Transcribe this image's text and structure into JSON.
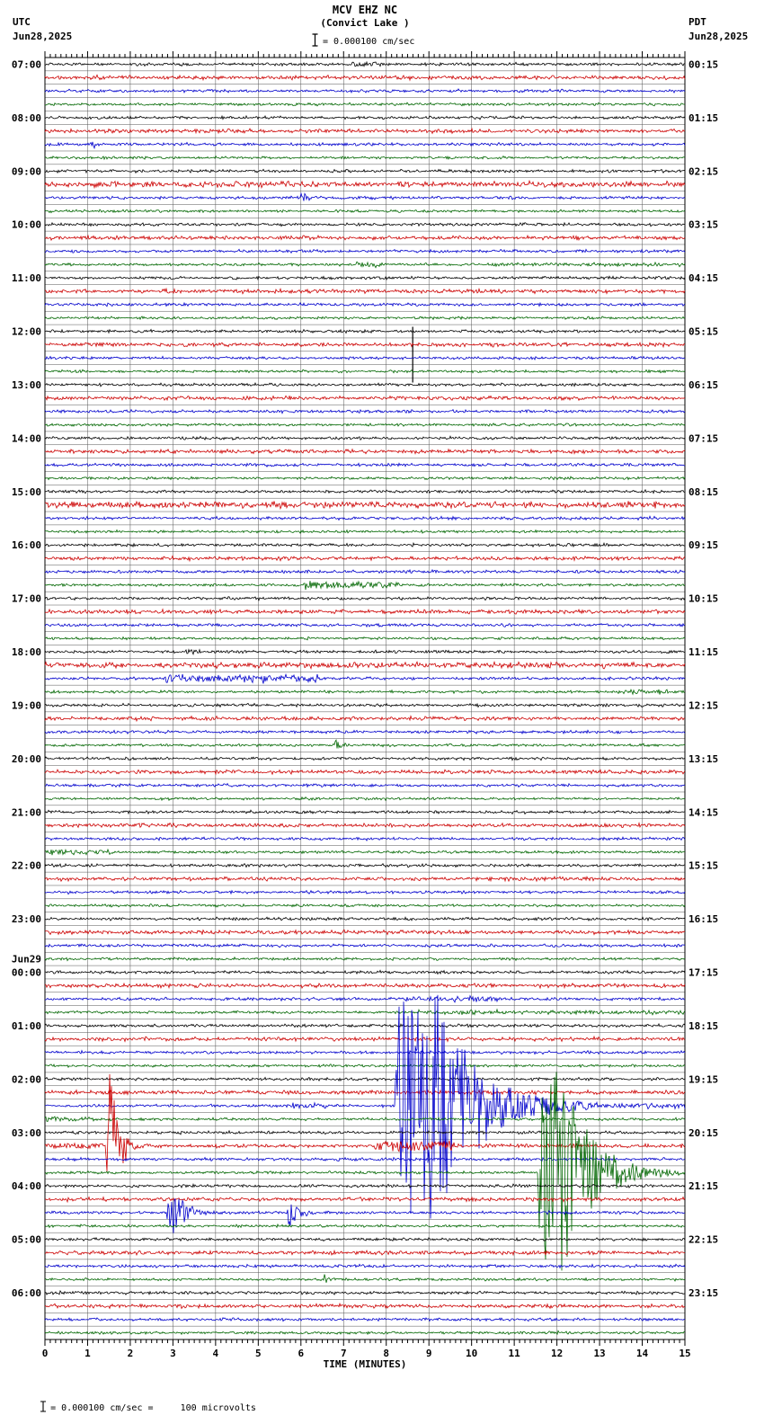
{
  "header": {
    "title_line1": "MCV EHZ NC",
    "title_line2": "(Convict Lake )",
    "left_tz": "UTC",
    "left_date": "Jun28,2025",
    "right_tz": "PDT",
    "right_date": "Jun28,2025",
    "scale_icon": "i-beam-icon",
    "scale_label": "= 0.000100 cm/sec"
  },
  "footer": {
    "xaxis_title": "TIME (MINUTES)",
    "scale_icon": "i-beam-icon",
    "scale_note": "= 0.000100 cm/sec =     100 microvolts"
  },
  "chart_data": {
    "type": "line",
    "subtype": "helicorder-seismogram",
    "station": "MCV EHZ NC",
    "location": "Convict Lake",
    "minutes_per_row": 15,
    "rows_total": 96,
    "x_axis": {
      "label": "TIME (MINUTES)",
      "range": [
        0,
        15
      ],
      "ticks": [
        0,
        1,
        2,
        3,
        4,
        5,
        6,
        7,
        8,
        9,
        10,
        11,
        12,
        13,
        14,
        15
      ]
    },
    "trace_colors_cycle": [
      "#000000",
      "#cc0000",
      "#0000cc",
      "#006600"
    ],
    "utc_hour_labels": [
      "07:00",
      "08:00",
      "09:00",
      "10:00",
      "11:00",
      "12:00",
      "13:00",
      "14:00",
      "15:00",
      "16:00",
      "17:00",
      "18:00",
      "19:00",
      "20:00",
      "21:00",
      "22:00",
      "23:00",
      "00:00",
      "01:00",
      "02:00",
      "03:00",
      "04:00",
      "05:00",
      "06:00"
    ],
    "pdt_hour_labels": [
      "00:15",
      "01:15",
      "02:15",
      "03:15",
      "04:15",
      "05:15",
      "06:15",
      "07:15",
      "08:15",
      "09:15",
      "10:15",
      "11:15",
      "12:15",
      "13:15",
      "14:15",
      "15:15",
      "16:15",
      "17:15",
      "18:15",
      "19:15",
      "20:15",
      "21:15",
      "22:15",
      "23:15"
    ],
    "day_change": {
      "label": "Jun29",
      "before_utc_label": "00:00"
    },
    "noise": {
      "base_by_color": [
        1.0,
        1.3,
        1.0,
        0.9
      ],
      "row_overrides": {
        "9": 1.5,
        "33": 1.7,
        "45": 1.5
      }
    },
    "events": [
      {
        "row": 0,
        "type": "burst",
        "t0": 7.2,
        "t1": 7.9,
        "amp": 3
      },
      {
        "row": 6,
        "type": "spike",
        "t0": 1.05,
        "t1": 1.6,
        "amp": 5
      },
      {
        "row": 10,
        "type": "spike",
        "t0": 6.0,
        "t1": 6.6,
        "amp": 6
      },
      {
        "row": 15,
        "type": "burst",
        "t0": 7.3,
        "t1": 8.0,
        "amp": 2.2
      },
      {
        "row": 15,
        "type": "step",
        "t0": 10.4,
        "t1": 15,
        "amp": 1.3
      },
      {
        "row": 20,
        "type": "vline",
        "t0": 8.62,
        "up": 5,
        "down": 57
      },
      {
        "row": 39,
        "type": "spike",
        "t0": 6.05,
        "t1": 8.4,
        "amp": 6
      },
      {
        "row": 39,
        "type": "burst",
        "t0": 6.3,
        "t1": 8.3,
        "amp": 3
      },
      {
        "row": 44,
        "type": "burst",
        "t0": 3.3,
        "t1": 3.65,
        "amp": 2.5
      },
      {
        "row": 46,
        "type": "burst",
        "t0": 2.8,
        "t1": 6.4,
        "amp": 3.5
      },
      {
        "row": 46,
        "type": "spike",
        "t0": 3.0,
        "t1": 4.2,
        "amp": 6
      },
      {
        "row": 46,
        "type": "spike",
        "t0": 5.1,
        "t1": 6.1,
        "amp": 6
      },
      {
        "row": 47,
        "type": "burst",
        "t0": 13.4,
        "t1": 14.6,
        "amp": 2
      },
      {
        "row": 51,
        "type": "spike",
        "t0": 6.8,
        "t1": 7.25,
        "amp": 7
      },
      {
        "row": 57,
        "type": "burst",
        "t0": 2.85,
        "t1": 3.25,
        "amp": 3
      },
      {
        "row": 59,
        "type": "burst",
        "t0": 0,
        "t1": 1.6,
        "amp": 2.5
      },
      {
        "row": 70,
        "type": "burst",
        "t0": 8.3,
        "t1": 10.8,
        "amp": 1.8
      },
      {
        "row": 71,
        "type": "step",
        "t0": 8.7,
        "t1": 15,
        "amp": 1.5
      },
      {
        "row": 78,
        "type": "burst",
        "t0": 5.8,
        "t1": 6.6,
        "amp": 2.5
      },
      {
        "row": 78,
        "type": "quake",
        "t0": 8.2,
        "t1": 15,
        "amp": 128,
        "plateau": 1.0,
        "decay": 1.0,
        "floor": 2
      },
      {
        "row": 79,
        "type": "spike",
        "t0": 0,
        "t1": 3.0,
        "amp": 3.5
      },
      {
        "row": 81,
        "type": "burst",
        "t0": 0.3,
        "t1": 1.4,
        "amp": 2
      },
      {
        "row": 81,
        "type": "quake",
        "t0": 1.42,
        "t1": 2.8,
        "amp": 90,
        "plateau": 0.12,
        "decay": 0.2
      },
      {
        "row": 81,
        "type": "burst",
        "t0": 7.7,
        "t1": 9.6,
        "amp": 5
      },
      {
        "row": 83,
        "type": "quake",
        "t0": 11.55,
        "t1": 15,
        "amp": 115,
        "plateau": 0.55,
        "decay": 0.7,
        "floor": 2
      },
      {
        "row": 86,
        "type": "quake",
        "t0": 2.85,
        "t1": 4.3,
        "amp": 30,
        "plateau": 0.1,
        "decay": 0.35
      },
      {
        "row": 86,
        "type": "quake",
        "t0": 5.65,
        "t1": 6.5,
        "amp": 18,
        "plateau": 0.08,
        "decay": 0.2
      },
      {
        "row": 91,
        "type": "spike",
        "t0": 6.55,
        "t1": 7.0,
        "amp": 6
      },
      {
        "row": 95,
        "type": "spike",
        "t0": 12.0,
        "t1": 12.35,
        "amp": 3
      }
    ]
  }
}
